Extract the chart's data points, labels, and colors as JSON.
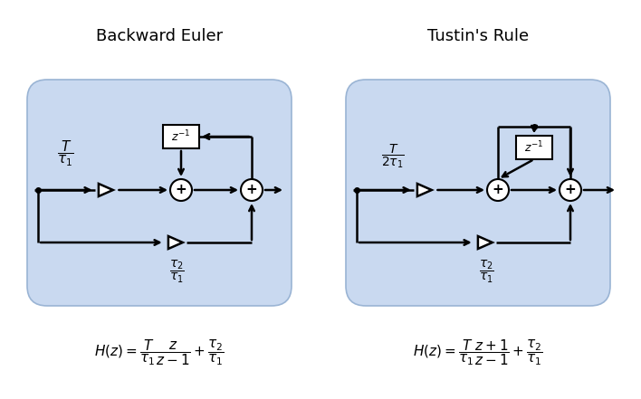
{
  "title_left": "Backward Euler",
  "title_right": "Tustin's Rule",
  "bg_color": "#c9d9f0",
  "bg_edge_color": "#9ab4d4",
  "box_color": "#ffffff",
  "line_color": "#000000",
  "fig_width": 7.08,
  "fig_height": 4.41,
  "dpi": 100
}
